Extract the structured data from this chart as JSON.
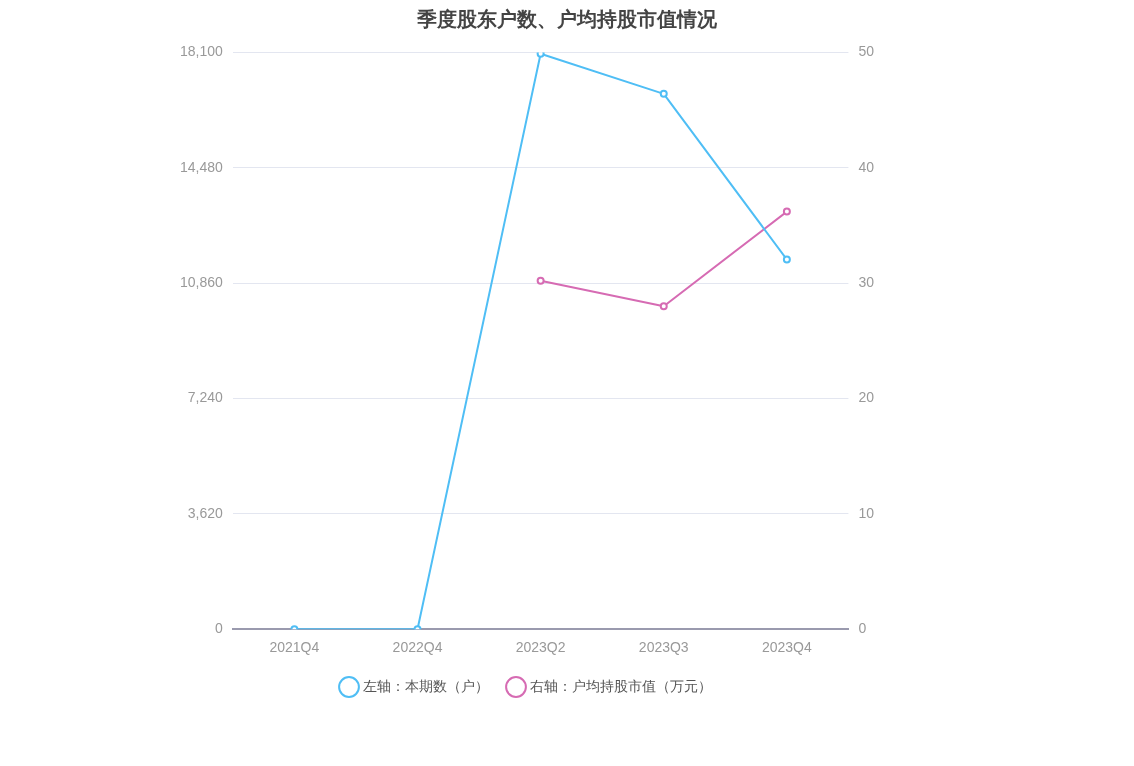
{
  "chart_data": {
    "type": "line",
    "title": "季度股东户数、户均持股市值情况",
    "categories": [
      "2021Q4",
      "2022Q4",
      "2023Q2",
      "2023Q3",
      "2023Q4"
    ],
    "series": [
      {
        "name": "左轴：本期数（户）",
        "color": "#4fbef5",
        "values": [
          0,
          0,
          18060,
          16800,
          11600
        ]
      },
      {
        "name": "右轴：户均持股市值（万元）",
        "color": "#d66bb3",
        "axis": "y2",
        "values": [
          null,
          null,
          30.2,
          28.0,
          36.2
        ]
      }
    ],
    "ylim": [
      0,
      18100
    ],
    "yticks": [
      {
        "value": 0,
        "label": "0"
      },
      {
        "value": 3620,
        "label": "3,620"
      },
      {
        "value": 7240,
        "label": "7,240"
      },
      {
        "value": 10860,
        "label": "10,860"
      },
      {
        "value": 14480,
        "label": "14,480"
      },
      {
        "value": 18100,
        "label": "18,100"
      }
    ],
    "y2lim": [
      0,
      50
    ],
    "y2ticks": [
      0,
      10,
      20,
      30,
      40,
      50
    ],
    "grid": "y",
    "legend": "bottom",
    "marker": "circle",
    "line_style": "solid"
  }
}
